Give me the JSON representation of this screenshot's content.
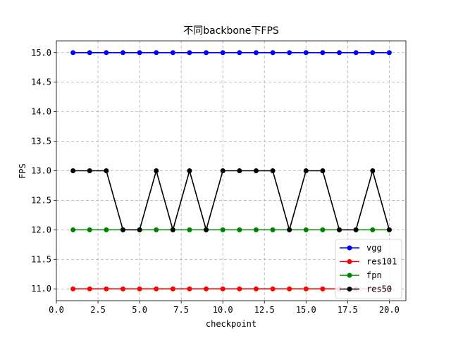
{
  "chart_data": {
    "type": "line",
    "title": "不同backbone下FPS",
    "xlabel": "checkpoint",
    "ylabel": "FPS",
    "xlim": [
      0,
      21
    ],
    "ylim": [
      10.8,
      15.2
    ],
    "x_ticks": [
      "0.0",
      "2.5",
      "5.0",
      "7.5",
      "10.0",
      "12.5",
      "15.0",
      "17.5",
      "20.0"
    ],
    "y_ticks": [
      "11.0",
      "11.5",
      "12.0",
      "12.5",
      "13.0",
      "13.5",
      "14.0",
      "14.5",
      "15.0"
    ],
    "grid": true,
    "legend_position": "lower-right",
    "x": [
      1,
      2,
      3,
      4,
      5,
      6,
      7,
      8,
      9,
      10,
      11,
      12,
      13,
      14,
      15,
      16,
      17,
      18,
      19,
      20
    ],
    "series": [
      {
        "name": "vgg",
        "color": "#0000ff",
        "values": [
          15,
          15,
          15,
          15,
          15,
          15,
          15,
          15,
          15,
          15,
          15,
          15,
          15,
          15,
          15,
          15,
          15,
          15,
          15,
          15
        ]
      },
      {
        "name": "res101",
        "color": "#ff0000",
        "values": [
          11,
          11,
          11,
          11,
          11,
          11,
          11,
          11,
          11,
          11,
          11,
          11,
          11,
          11,
          11,
          11,
          11,
          11,
          11,
          11
        ]
      },
      {
        "name": "fpn",
        "color": "#008000",
        "values": [
          12,
          12,
          12,
          12,
          12,
          12,
          12,
          12,
          12,
          12,
          12,
          12,
          12,
          12,
          12,
          12,
          12,
          12,
          12,
          12
        ]
      },
      {
        "name": "res50",
        "color": "#000000",
        "values": [
          13,
          13,
          13,
          12,
          12,
          13,
          12,
          13,
          12,
          13,
          13,
          13,
          13,
          12,
          13,
          13,
          12,
          12,
          13,
          12
        ]
      }
    ]
  }
}
